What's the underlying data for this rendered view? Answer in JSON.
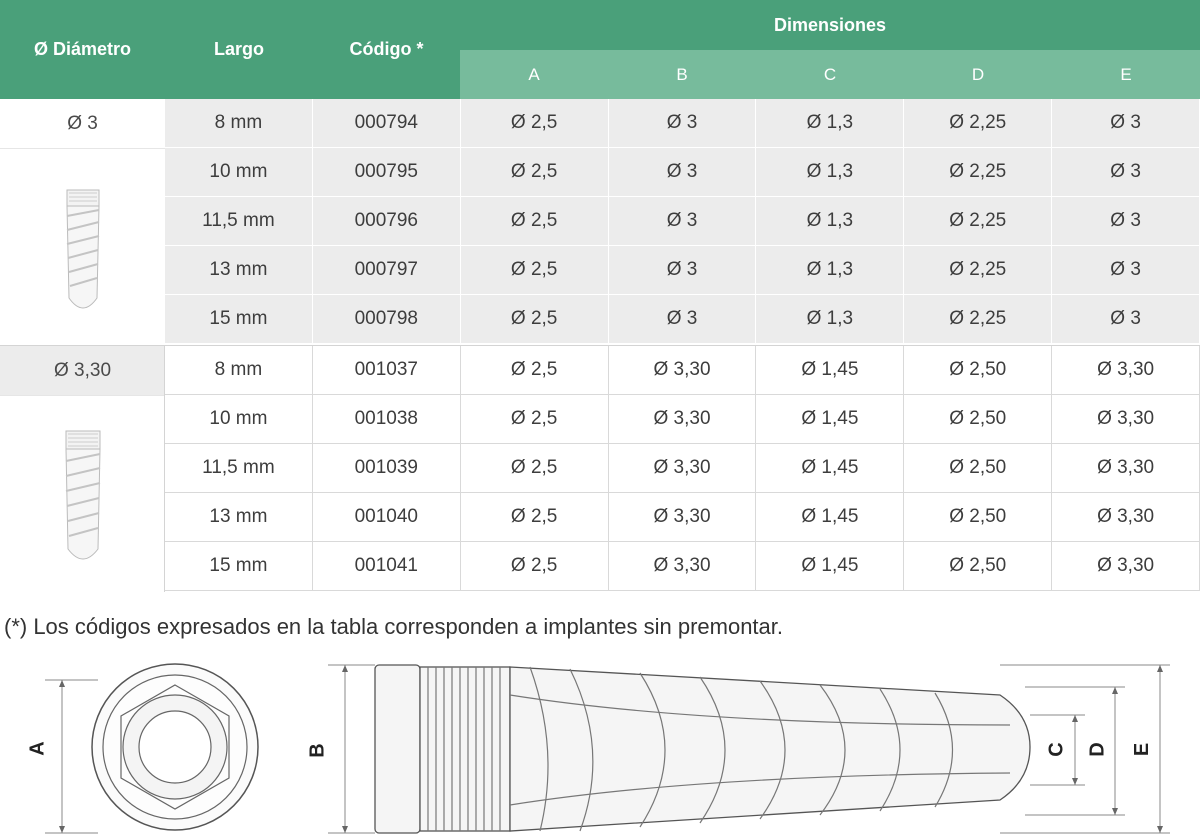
{
  "header": {
    "diametro": "Ø Diámetro",
    "largo": "Largo",
    "codigo": "Código *",
    "dimensiones": "Dimensiones",
    "dims": [
      "A",
      "B",
      "C",
      "D",
      "E"
    ]
  },
  "groups": [
    {
      "diametro": "Ø 3",
      "rows": [
        {
          "largo": "8 mm",
          "codigo": "000794",
          "a": "Ø 2,5",
          "b": "Ø 3",
          "c": "Ø 1,3",
          "d": "Ø 2,25",
          "e": "Ø 3"
        },
        {
          "largo": "10 mm",
          "codigo": "000795",
          "a": "Ø 2,5",
          "b": "Ø 3",
          "c": "Ø 1,3",
          "d": "Ø 2,25",
          "e": "Ø 3"
        },
        {
          "largo": "11,5 mm",
          "codigo": "000796",
          "a": "Ø 2,5",
          "b": "Ø 3",
          "c": "Ø 1,3",
          "d": "Ø 2,25",
          "e": "Ø 3"
        },
        {
          "largo": "13 mm",
          "codigo": "000797",
          "a": "Ø 2,5",
          "b": "Ø 3",
          "c": "Ø 1,3",
          "d": "Ø 2,25",
          "e": "Ø 3"
        },
        {
          "largo": "15 mm",
          "codigo": "000798",
          "a": "Ø 2,5",
          "b": "Ø 3",
          "c": "Ø 1,3",
          "d": "Ø 2,25",
          "e": "Ø 3"
        }
      ]
    },
    {
      "diametro": "Ø 3,30",
      "rows": [
        {
          "largo": "8 mm",
          "codigo": "001037",
          "a": "Ø 2,5",
          "b": "Ø 3,30",
          "c": "Ø 1,45",
          "d": "Ø 2,50",
          "e": "Ø 3,30"
        },
        {
          "largo": "10 mm",
          "codigo": "001038",
          "a": "Ø 2,5",
          "b": "Ø 3,30",
          "c": "Ø 1,45",
          "d": "Ø 2,50",
          "e": "Ø 3,30"
        },
        {
          "largo": "11,5 mm",
          "codigo": "001039",
          "a": "Ø 2,5",
          "b": "Ø 3,30",
          "c": "Ø 1,45",
          "d": "Ø 2,50",
          "e": "Ø 3,30"
        },
        {
          "largo": "13 mm",
          "codigo": "001040",
          "a": "Ø 2,5",
          "b": "Ø 3,30",
          "c": "Ø 1,45",
          "d": "Ø 2,50",
          "e": "Ø 3,30"
        },
        {
          "largo": "15 mm",
          "codigo": "001041",
          "a": "Ø 2,5",
          "b": "Ø 3,30",
          "c": "Ø 1,45",
          "d": "Ø 2,50",
          "e": "Ø 3,30"
        }
      ]
    }
  ],
  "note": "(*) Los códigos expresados en la tabla corresponden a implantes sin premontar.",
  "diagram_labels": {
    "a": "A",
    "b": "B",
    "c": "C",
    "d": "D",
    "e": "E"
  },
  "colors": {
    "header": "#4aa07a",
    "subheader": "#77bb9c",
    "shaded_row": "#ececec"
  }
}
